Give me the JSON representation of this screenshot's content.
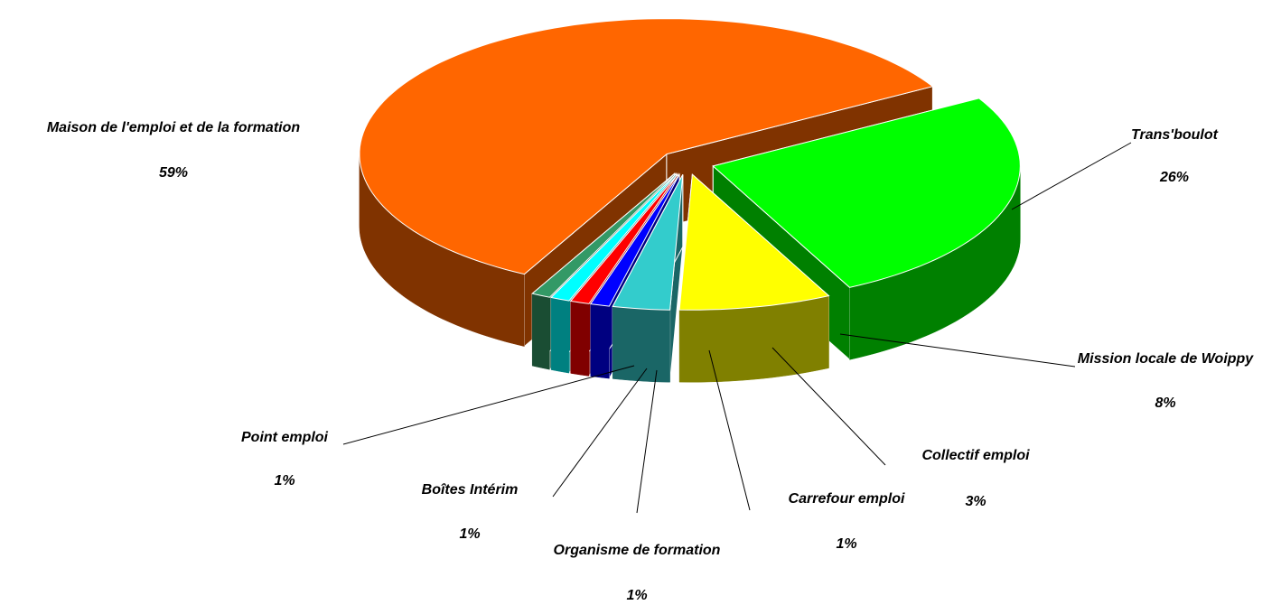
{
  "chart_data": {
    "type": "pie3d",
    "categories": [
      "Trans'boulot",
      "Mission locale de Woippy",
      "Collectif emploi",
      "Carrefour emploi",
      "Organisme de formation",
      "Boîtes Intérim",
      "Point emploi",
      "Maison de l'emploi et de la formation"
    ],
    "values": [
      26,
      8,
      3,
      1,
      1,
      1,
      1,
      59
    ],
    "value_labels": [
      "26%",
      "8%",
      "3%",
      "1%",
      "1%",
      "1%",
      "1%",
      "59%"
    ],
    "colors": [
      "#00ff00",
      "#ffff00",
      "#33cccc",
      "#0000ff",
      "#ff0000",
      "#00ffff",
      "#339966",
      "#ff6600"
    ]
  }
}
